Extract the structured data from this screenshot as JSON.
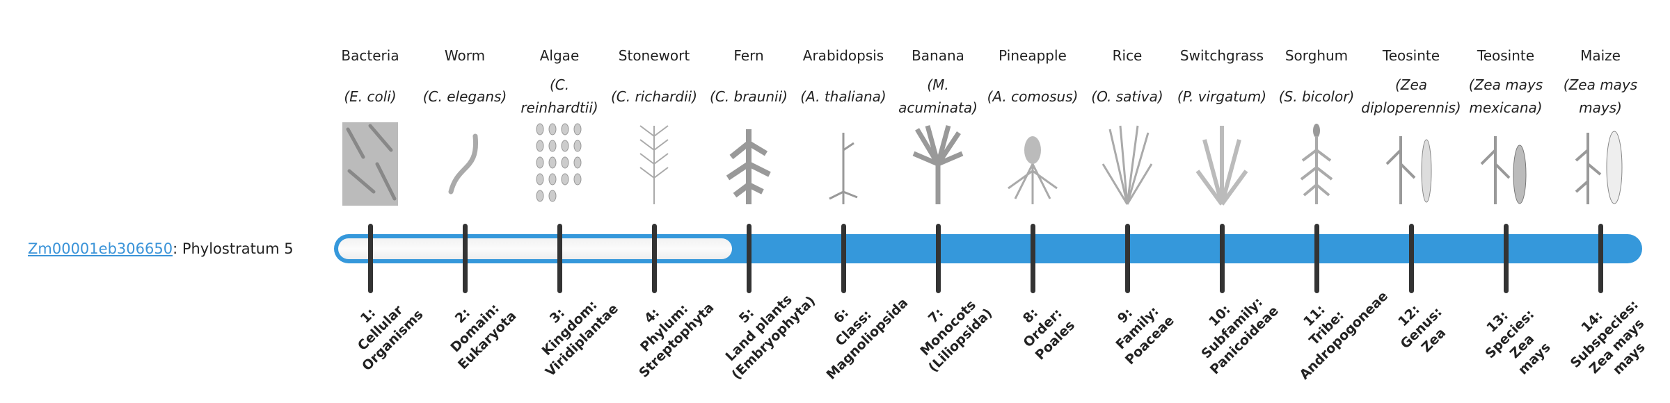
{
  "gene": {
    "id": "Zm00001eb306650",
    "suffix": ": Phylostratum 5"
  },
  "phylostratum": 5,
  "colors": {
    "bar": "#3598db",
    "link": "#3a93d8",
    "tick": "#333333"
  },
  "strata": [
    {
      "common": "Bacteria",
      "scientific": "(E. coli)",
      "icon": "bacteria-image",
      "label": [
        "1:",
        "Cellular",
        "Organisms"
      ]
    },
    {
      "common": "Worm",
      "scientific": "(C. elegans)",
      "icon": "worm-image",
      "label": [
        "2:",
        "Domain:",
        "Eukaryota"
      ]
    },
    {
      "common": "Algae",
      "scientific": "(C. reinhardtii)",
      "icon": "algae-image",
      "label": [
        "3:",
        "Kingdom:",
        "Viridiplantae"
      ]
    },
    {
      "common": "Stonewort",
      "scientific": "(C. richardii)",
      "icon": "stonewort-image",
      "label": [
        "4:",
        "Phylum:",
        "Streptophyta"
      ]
    },
    {
      "common": "Fern",
      "scientific": "(C. braunii)",
      "icon": "fern-image",
      "label": [
        "5:",
        "Land plants",
        "(Embryophyta)"
      ]
    },
    {
      "common": "Arabidopsis",
      "scientific": "(A. thaliana)",
      "icon": "arabidopsis-image",
      "label": [
        "6:",
        "Class:",
        "Magnoliopsida"
      ]
    },
    {
      "common": "Banana",
      "scientific": "(M. acuminata)",
      "icon": "banana-image",
      "label": [
        "7:",
        "Monocots",
        "(Liliopsida)"
      ]
    },
    {
      "common": "Pineapple",
      "scientific": "(A. comosus)",
      "icon": "pineapple-image",
      "label": [
        "8:",
        "Order:",
        "Poales"
      ]
    },
    {
      "common": "Rice",
      "scientific": "(O. sativa)",
      "icon": "rice-image",
      "label": [
        "9:",
        "Family:",
        "Poaceae"
      ]
    },
    {
      "common": "Switchgrass",
      "scientific": "(P. virgatum)",
      "icon": "switchgrass-image",
      "label": [
        "10:",
        "Subfamily:",
        "Panicoideae"
      ]
    },
    {
      "common": "Sorghum",
      "scientific": "(S. bicolor)",
      "icon": "sorghum-image",
      "label": [
        "11:",
        "Tribe:",
        "Andropogoneae"
      ]
    },
    {
      "common": "Teosinte",
      "scientific": "(Zea diploperennis)",
      "icon": "teosinte-image",
      "label": [
        "12:",
        "Genus:",
        "Zea"
      ]
    },
    {
      "common": "Teosinte",
      "scientific": "(Zea mays mexicana)",
      "icon": "teosinte-mexicana-image",
      "label": [
        "13:",
        "Species:",
        "Zea",
        "mays"
      ]
    },
    {
      "common": "Maize",
      "scientific": "(Zea mays mays)",
      "icon": "maize-image",
      "label": [
        "14:",
        "Subspecies:",
        "Zea mays",
        "mays"
      ]
    }
  ]
}
